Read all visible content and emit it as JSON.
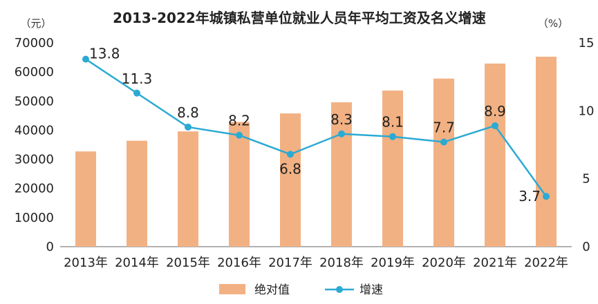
{
  "chart_data": {
    "type": "bar+line",
    "title": "2013-2022年城镇私营单位就业人员年平均工资及名义增速",
    "left_axis": {
      "unit": "（元）",
      "ylim": [
        0,
        70000
      ],
      "ticks": [
        "0",
        "10000",
        "20000",
        "30000",
        "40000",
        "50000",
        "60000",
        "70000"
      ]
    },
    "right_axis": {
      "unit": "（%）",
      "ylim": [
        0,
        15
      ],
      "ticks": [
        "0",
        "5",
        "10",
        "15"
      ]
    },
    "categories": [
      "2013年",
      "2014年",
      "2015年",
      "2016年",
      "2017年",
      "2018年",
      "2019年",
      "2020年",
      "2021年",
      "2022年"
    ],
    "series": [
      {
        "name": "绝对值",
        "type": "bar",
        "axis": "left",
        "color": "#F2B183",
        "values": [
          32706,
          36390,
          39589,
          42833,
          45761,
          49575,
          53604,
          57727,
          62884,
          65237
        ]
      },
      {
        "name": "增速",
        "type": "line",
        "axis": "right",
        "color": "#2BAAD3",
        "values": [
          13.8,
          11.3,
          8.8,
          8.2,
          6.8,
          8.3,
          8.1,
          7.7,
          8.9,
          3.7
        ],
        "labels": [
          "13.8",
          "11.3",
          "8.8",
          "8.2",
          "6.8",
          "8.3",
          "8.1",
          "7.7",
          "8.9",
          "3.7"
        ]
      }
    ],
    "legend_position": "bottom",
    "grid": false
  }
}
